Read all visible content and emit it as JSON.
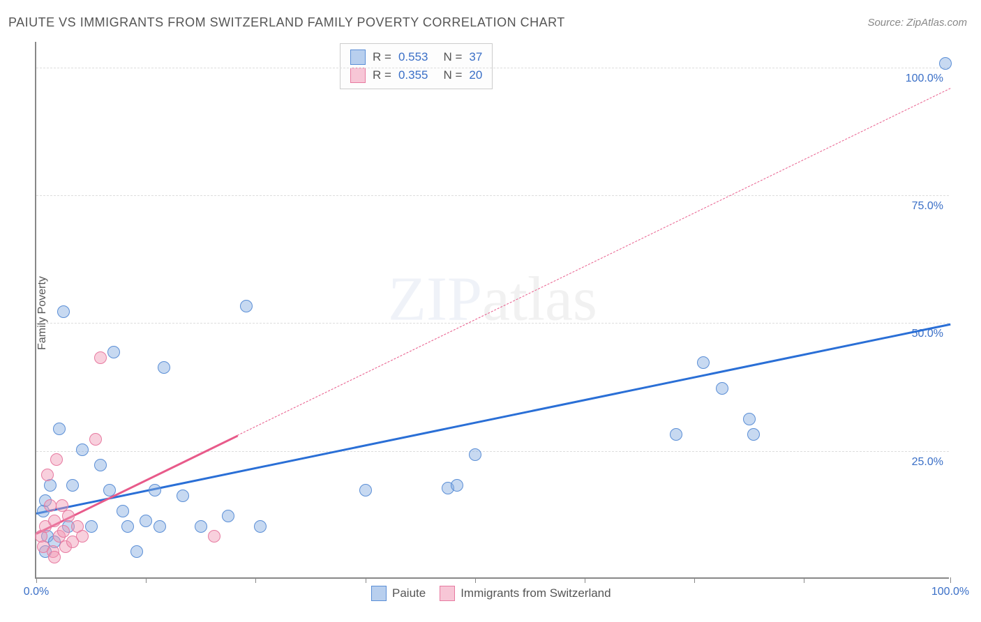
{
  "title": "PAIUTE VS IMMIGRANTS FROM SWITZERLAND FAMILY POVERTY CORRELATION CHART",
  "source": "Source: ZipAtlas.com",
  "ylabel": "Family Poverty",
  "watermark": {
    "part1": "ZIP",
    "part2": "atlas"
  },
  "chart": {
    "type": "scatter",
    "xlim": [
      0,
      100
    ],
    "ylim": [
      0,
      105
    ],
    "background_color": "#ffffff",
    "grid_color": "#dddddd",
    "axis_color": "#888888",
    "yticks": [
      {
        "value": 25,
        "label": "25.0%"
      },
      {
        "value": 50,
        "label": "50.0%"
      },
      {
        "value": 75,
        "label": "75.0%"
      },
      {
        "value": 100,
        "label": "100.0%"
      }
    ],
    "xticks": [
      {
        "value": 0,
        "label": "0.0%"
      },
      {
        "value": 12
      },
      {
        "value": 24
      },
      {
        "value": 36
      },
      {
        "value": 48
      },
      {
        "value": 60
      },
      {
        "value": 72
      },
      {
        "value": 84
      },
      {
        "value": 100,
        "label": "100.0%"
      }
    ],
    "series": [
      {
        "name": "Paiute",
        "color_fill": "rgba(130,170,225,0.45)",
        "color_stroke": "#5a8ed6",
        "swatch_fill": "#b8cfee",
        "swatch_stroke": "#5a8ed6",
        "R": "0.553",
        "N": "37",
        "trend": {
          "color": "#2a6fd6",
          "width": 2.5,
          "x1": 0,
          "y1": 13,
          "x2": 100,
          "y2": 50,
          "solid_until_x": 100
        },
        "points": [
          {
            "x": 0.8,
            "y": 13
          },
          {
            "x": 1.0,
            "y": 15
          },
          {
            "x": 1.2,
            "y": 8
          },
          {
            "x": 1.5,
            "y": 18
          },
          {
            "x": 2.5,
            "y": 29
          },
          {
            "x": 3.0,
            "y": 52
          },
          {
            "x": 3.5,
            "y": 10
          },
          {
            "x": 4.0,
            "y": 18
          },
          {
            "x": 5.0,
            "y": 25
          },
          {
            "x": 6.0,
            "y": 10
          },
          {
            "x": 7.0,
            "y": 22
          },
          {
            "x": 8.0,
            "y": 17
          },
          {
            "x": 8.5,
            "y": 44
          },
          {
            "x": 9.5,
            "y": 13
          },
          {
            "x": 10.0,
            "y": 10
          },
          {
            "x": 11.0,
            "y": 5
          },
          {
            "x": 12.0,
            "y": 11
          },
          {
            "x": 13.0,
            "y": 17
          },
          {
            "x": 13.5,
            "y": 10
          },
          {
            "x": 14.0,
            "y": 41
          },
          {
            "x": 16.0,
            "y": 16
          },
          {
            "x": 18.0,
            "y": 10
          },
          {
            "x": 21.0,
            "y": 12
          },
          {
            "x": 23.0,
            "y": 53
          },
          {
            "x": 24.5,
            "y": 10
          },
          {
            "x": 36.0,
            "y": 17
          },
          {
            "x": 45.0,
            "y": 17.5
          },
          {
            "x": 46.0,
            "y": 18
          },
          {
            "x": 48.0,
            "y": 24
          },
          {
            "x": 70.0,
            "y": 28
          },
          {
            "x": 73.0,
            "y": 42
          },
          {
            "x": 75.0,
            "y": 37
          },
          {
            "x": 78.0,
            "y": 31
          },
          {
            "x": 78.5,
            "y": 28
          },
          {
            "x": 99.5,
            "y": 100.5
          },
          {
            "x": 1.0,
            "y": 5
          },
          {
            "x": 2.0,
            "y": 7
          }
        ]
      },
      {
        "name": "Immigrants from Switzerland",
        "color_fill": "rgba(240,150,180,0.45)",
        "color_stroke": "#e77aa0",
        "swatch_fill": "#f7c6d6",
        "swatch_stroke": "#e77aa0",
        "R": "0.355",
        "N": "20",
        "trend": {
          "color": "#e85a8a",
          "width": 2.5,
          "x1": 0,
          "y1": 9,
          "x2": 100,
          "y2": 96,
          "solid_until_x": 22
        },
        "points": [
          {
            "x": 0.5,
            "y": 8
          },
          {
            "x": 0.8,
            "y": 6
          },
          {
            "x": 1.0,
            "y": 10
          },
          {
            "x": 1.2,
            "y": 20
          },
          {
            "x": 1.5,
            "y": 14
          },
          {
            "x": 1.8,
            "y": 5
          },
          {
            "x": 2.0,
            "y": 11
          },
          {
            "x": 2.2,
            "y": 23
          },
          {
            "x": 2.5,
            "y": 8
          },
          {
            "x": 2.8,
            "y": 14
          },
          {
            "x": 3.0,
            "y": 9
          },
          {
            "x": 3.2,
            "y": 6
          },
          {
            "x": 3.5,
            "y": 12
          },
          {
            "x": 4.0,
            "y": 7
          },
          {
            "x": 4.5,
            "y": 10
          },
          {
            "x": 5.0,
            "y": 8
          },
          {
            "x": 6.5,
            "y": 27
          },
          {
            "x": 7.0,
            "y": 43
          },
          {
            "x": 19.5,
            "y": 8
          },
          {
            "x": 2.0,
            "y": 4
          }
        ]
      }
    ],
    "legend": {
      "items": [
        {
          "label": "Paiute",
          "series_index": 0
        },
        {
          "label": "Immigrants from Switzerland",
          "series_index": 1
        }
      ]
    }
  }
}
